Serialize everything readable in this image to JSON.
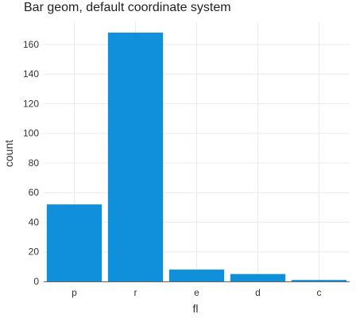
{
  "chart_data": {
    "type": "bar",
    "title": "Bar geom, default coordinate system",
    "xlabel": "fl",
    "ylabel": "count",
    "categories": [
      "p",
      "r",
      "e",
      "d",
      "c"
    ],
    "values": [
      52,
      168,
      8,
      5,
      1
    ],
    "ylim": [
      0,
      175
    ],
    "yticks": [
      0,
      20,
      40,
      60,
      80,
      100,
      120,
      140,
      160
    ],
    "grid": true,
    "bar_color": "#108fdb",
    "baseline_color": "#666666"
  }
}
